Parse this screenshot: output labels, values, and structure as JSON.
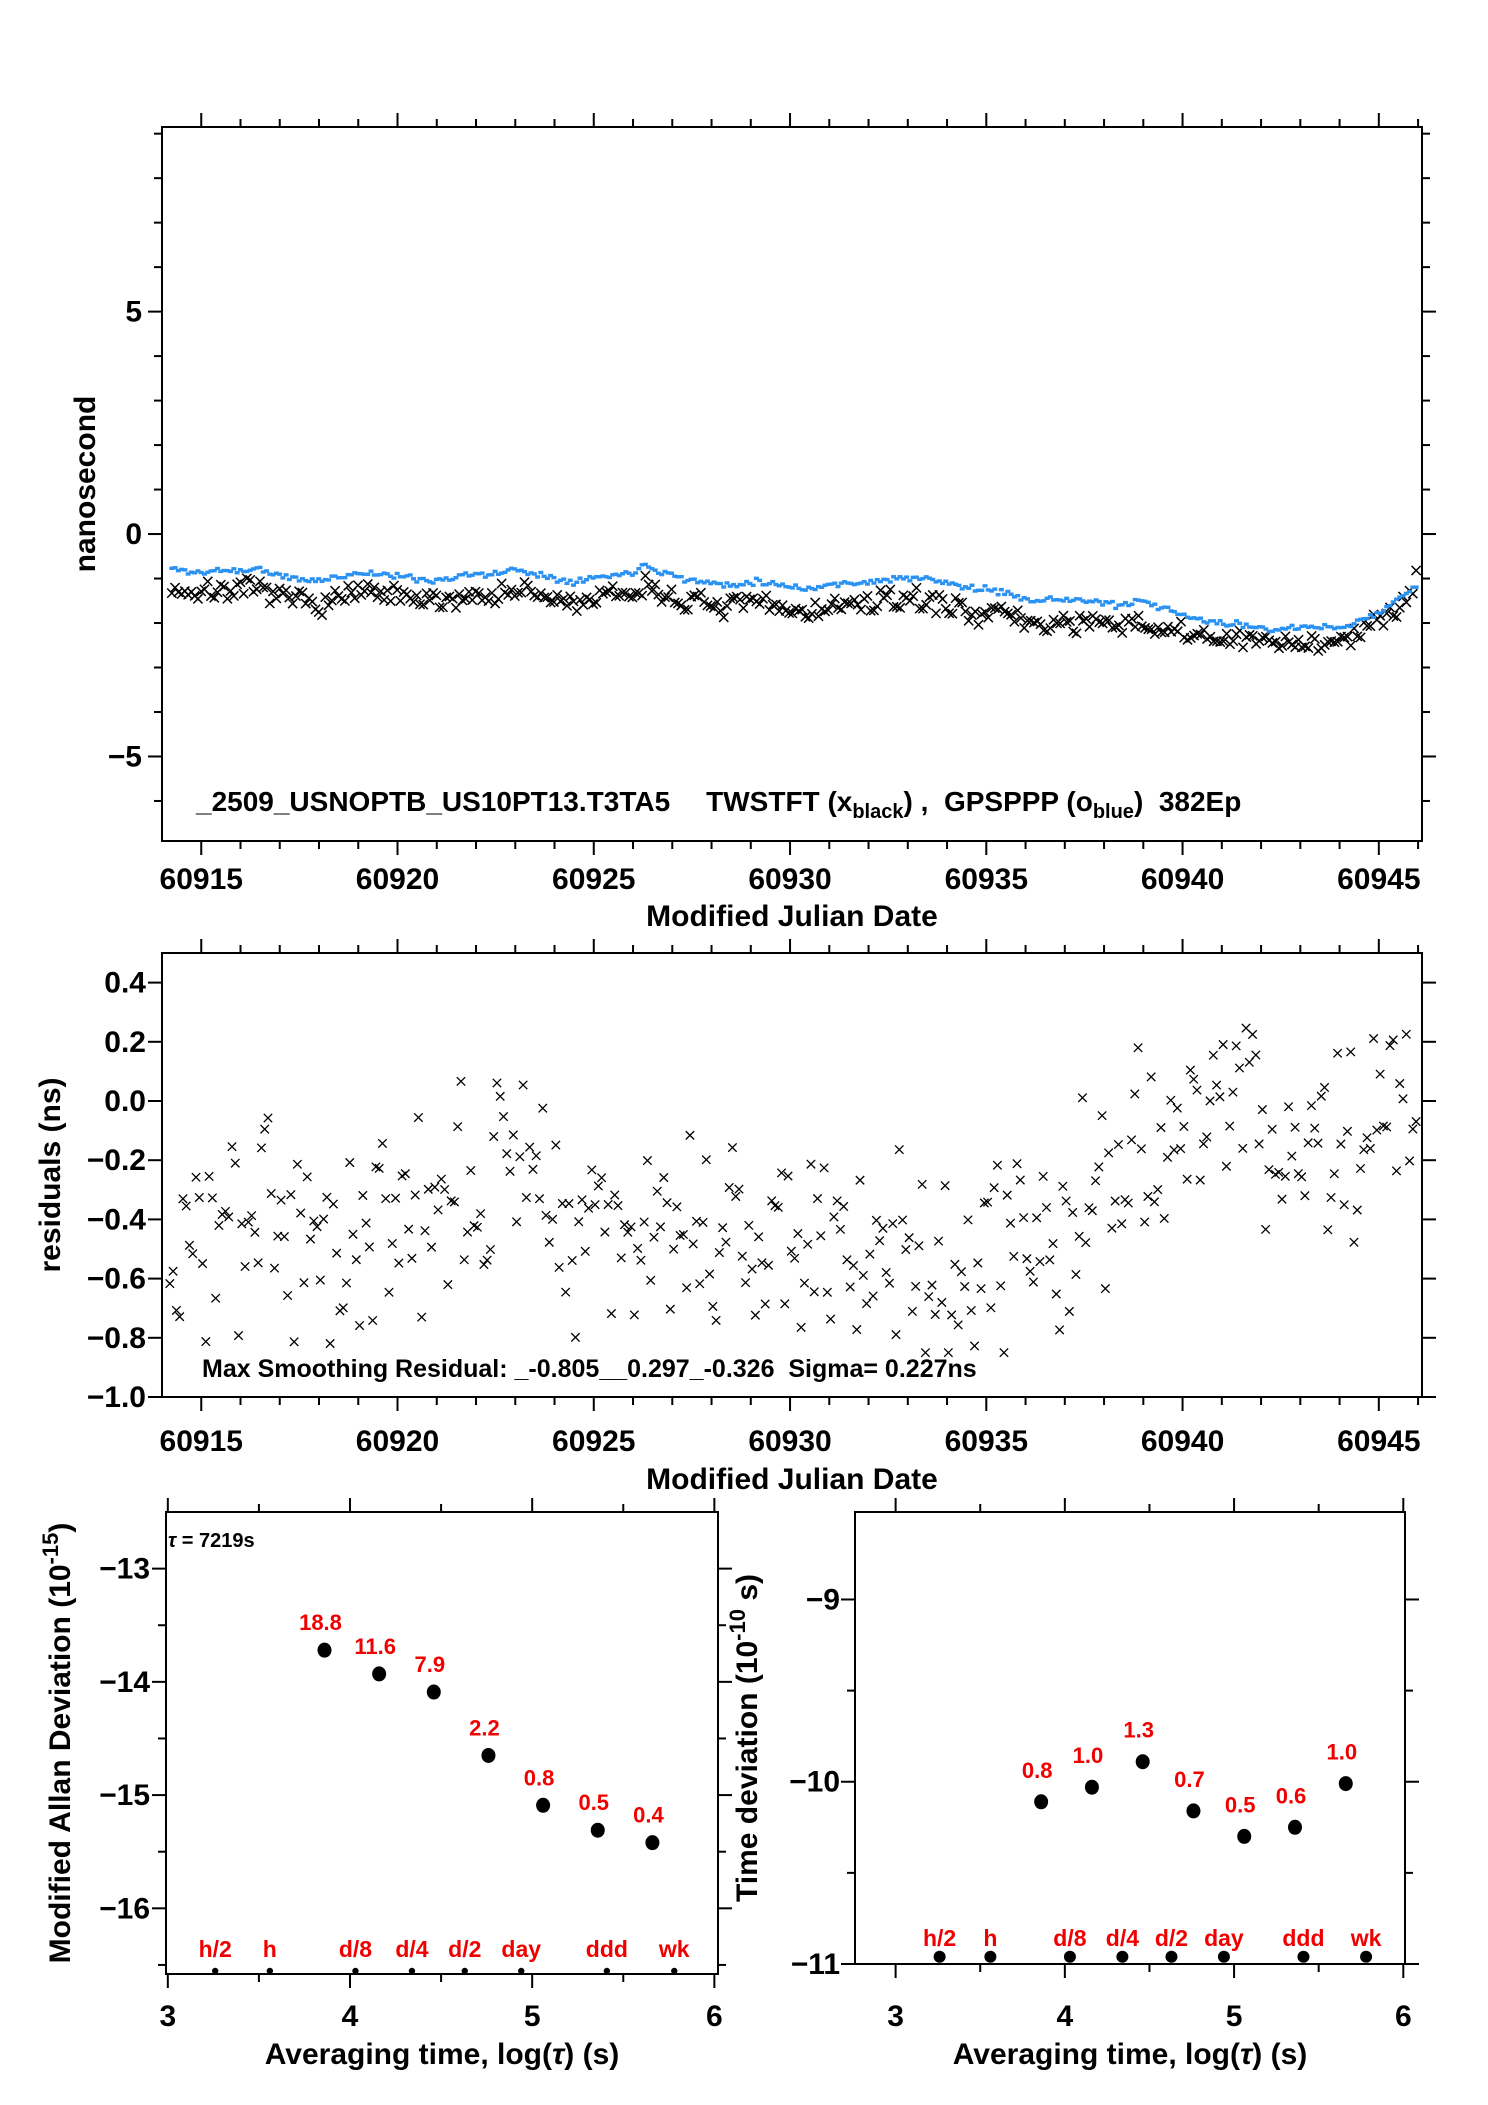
{
  "header": {
    "file_id": "_2509_USNOPTB_US10PT13.T3TA5",
    "legend_t1": "TWSTFT (x",
    "legend_sub1": "black",
    "legend_t2": ") ,  GPSPPP (o",
    "legend_sub2": "blue",
    "legend_t3": ")  382Ep"
  },
  "annotations": {
    "max_smoothing": "Max Smoothing Residual: _-0.805__0.297_-0.326  Sigma= 0.227ns",
    "tau_sym": "τ",
    "tau_rest": " = 7219s"
  },
  "colors": {
    "black": "#000000",
    "blue": "#2b92f2",
    "red": "#f00000"
  },
  "chart_data": [
    {
      "type": "scatter",
      "name": "time-transfer-comparison",
      "title": "_2509_USNOPTB_US10PT13.T3TA5 TWSTFT (x black), GPSPPP (o blue) 382Ep",
      "xlabel": [
        [
          "Modified Julian Date"
        ]
      ],
      "ylabel": [
        [
          "nanosecond"
        ]
      ],
      "xlim": [
        60914,
        60946.1
      ],
      "ylim": [
        -6.9,
        9.15
      ],
      "xticks": [
        60915,
        60920,
        60925,
        60930,
        60935,
        60940,
        60945
      ],
      "xtick_labels": [
        "60915",
        "60920",
        "60925",
        "60930",
        "60935",
        "60940",
        "60945"
      ],
      "xminor": 1,
      "yticks": [
        5,
        0,
        -5
      ],
      "ytick_labels": [
        "5",
        "0",
        "−5"
      ],
      "yminor": 1,
      "series": [
        {
          "name": "TWSTFT",
          "marker": "x",
          "color": "#000000",
          "n": 382,
          "seed": 7,
          "noise": 0.12,
          "trend": [
            [
              60914.25,
              -1.22
            ],
            [
              60915,
              -1.35
            ],
            [
              60915.5,
              -1.22
            ],
            [
              60916,
              -1.3
            ],
            [
              60916.5,
              -1.25
            ],
            [
              60917,
              -1.42
            ],
            [
              60917.5,
              -1.5
            ],
            [
              60918,
              -1.55
            ],
            [
              60918.5,
              -1.45
            ],
            [
              60919,
              -1.32
            ],
            [
              60919.5,
              -1.36
            ],
            [
              60920,
              -1.42
            ],
            [
              60920.5,
              -1.5
            ],
            [
              60921,
              -1.55
            ],
            [
              60921.4,
              -1.45
            ],
            [
              60921.8,
              -1.36
            ],
            [
              60922.2,
              -1.42
            ],
            [
              60922.6,
              -1.32
            ],
            [
              60923,
              -1.27
            ],
            [
              60923.5,
              -1.36
            ],
            [
              60924,
              -1.5
            ],
            [
              60924.5,
              -1.55
            ],
            [
              60925,
              -1.46
            ],
            [
              60925.5,
              -1.4
            ],
            [
              60926,
              -1.32
            ],
            [
              60926.3,
              -1.16
            ],
            [
              60926.7,
              -1.32
            ],
            [
              60927,
              -1.42
            ],
            [
              60927.5,
              -1.55
            ],
            [
              60928,
              -1.6
            ],
            [
              60928.5,
              -1.65
            ],
            [
              60929,
              -1.55
            ],
            [
              60929.5,
              -1.6
            ],
            [
              60930,
              -1.7
            ],
            [
              60930.5,
              -1.75
            ],
            [
              60931,
              -1.65
            ],
            [
              60931.5,
              -1.6
            ],
            [
              60932,
              -1.56
            ],
            [
              60932.5,
              -1.5
            ],
            [
              60933,
              -1.46
            ],
            [
              60933.5,
              -1.5
            ],
            [
              60934,
              -1.6
            ],
            [
              60934.5,
              -1.7
            ],
            [
              60935,
              -1.76
            ],
            [
              60935.5,
              -1.82
            ],
            [
              60936,
              -1.96
            ],
            [
              60936.5,
              -2.05
            ],
            [
              60937,
              -1.96
            ],
            [
              60937.5,
              -2.0
            ],
            [
              60938,
              -2.06
            ],
            [
              60938.5,
              -2.1
            ],
            [
              60939,
              -2.0
            ],
            [
              60939.5,
              -2.16
            ],
            [
              60940,
              -2.26
            ],
            [
              60940.5,
              -2.3
            ],
            [
              60941,
              -2.35
            ],
            [
              60941.5,
              -2.4
            ],
            [
              60942,
              -2.42
            ],
            [
              60942.5,
              -2.46
            ],
            [
              60943,
              -2.4
            ],
            [
              60943.5,
              -2.45
            ],
            [
              60944,
              -2.42
            ],
            [
              60944.4,
              -2.3
            ],
            [
              60944.8,
              -2.1
            ],
            [
              60945.2,
              -1.8
            ],
            [
              60945.6,
              -1.45
            ],
            [
              60945.95,
              -1.1
            ]
          ]
        },
        {
          "name": "GPSPPP",
          "marker": "square",
          "color": "#2b92f2",
          "n": 382,
          "seed": 11,
          "noise": 0.035,
          "trend": [
            [
              60914.25,
              -0.78
            ],
            [
              60915,
              -0.88
            ],
            [
              60915.5,
              -0.8
            ],
            [
              60916,
              -0.83
            ],
            [
              60916.5,
              -0.78
            ],
            [
              60917,
              -0.95
            ],
            [
              60917.5,
              -1.02
            ],
            [
              60918,
              -1.05
            ],
            [
              60918.5,
              -0.96
            ],
            [
              60919,
              -0.87
            ],
            [
              60919.5,
              -0.89
            ],
            [
              60920,
              -0.95
            ],
            [
              60920.5,
              -1.0
            ],
            [
              60921,
              -1.05
            ],
            [
              60921.4,
              -0.97
            ],
            [
              60921.8,
              -0.9
            ],
            [
              60922.2,
              -0.94
            ],
            [
              60922.6,
              -0.86
            ],
            [
              60923,
              -0.8
            ],
            [
              60923.5,
              -0.88
            ],
            [
              60924,
              -1.0
            ],
            [
              60924.5,
              -1.05
            ],
            [
              60925,
              -0.98
            ],
            [
              60925.5,
              -0.93
            ],
            [
              60926,
              -0.85
            ],
            [
              60926.3,
              -0.68
            ],
            [
              60926.7,
              -0.83
            ],
            [
              60927,
              -0.92
            ],
            [
              60927.5,
              -1.05
            ],
            [
              60928,
              -1.1
            ],
            [
              60928.5,
              -1.15
            ],
            [
              60929,
              -1.06
            ],
            [
              60929.5,
              -1.1
            ],
            [
              60930,
              -1.18
            ],
            [
              60930.5,
              -1.22
            ],
            [
              60931,
              -1.15
            ],
            [
              60931.5,
              -1.1
            ],
            [
              60932,
              -1.07
            ],
            [
              60932.5,
              -1.03
            ],
            [
              60933,
              -0.98
            ],
            [
              60933.5,
              -1.02
            ],
            [
              60934,
              -1.1
            ],
            [
              60934.5,
              -1.2
            ],
            [
              60935,
              -1.26
            ],
            [
              60935.5,
              -1.32
            ],
            [
              60936,
              -1.44
            ],
            [
              60936.5,
              -1.5
            ],
            [
              60937,
              -1.45
            ],
            [
              60937.5,
              -1.5
            ],
            [
              60938,
              -1.56
            ],
            [
              60938.5,
              -1.6
            ],
            [
              60939,
              -1.52
            ],
            [
              60939.5,
              -1.68
            ],
            [
              60940,
              -1.82
            ],
            [
              60940.5,
              -1.95
            ],
            [
              60941,
              -2.0
            ],
            [
              60941.5,
              -2.05
            ],
            [
              60942,
              -2.1
            ],
            [
              60942.5,
              -2.14
            ],
            [
              60943,
              -2.1
            ],
            [
              60943.5,
              -2.12
            ],
            [
              60944,
              -2.08
            ],
            [
              60944.4,
              -2.0
            ],
            [
              60944.8,
              -1.85
            ],
            [
              60945.2,
              -1.65
            ],
            [
              60945.6,
              -1.4
            ],
            [
              60945.95,
              -1.15
            ]
          ]
        }
      ]
    },
    {
      "type": "scatter",
      "name": "smoothing-residuals",
      "title": "Smoothing residuals",
      "xlabel": [
        [
          "Modified Julian Date"
        ]
      ],
      "ylabel": [
        [
          "residuals (ns)"
        ]
      ],
      "xlim": [
        60914,
        60946.1
      ],
      "ylim": [
        -1.0,
        0.5
      ],
      "xticks": [
        60915,
        60920,
        60925,
        60930,
        60935,
        60940,
        60945
      ],
      "xtick_labels": [
        "60915",
        "60920",
        "60925",
        "60930",
        "60935",
        "60940",
        "60945"
      ],
      "xminor": 1,
      "yticks": [
        0.4,
        0.2,
        0.0,
        -0.2,
        -0.4,
        -0.6,
        -0.8,
        -1.0
      ],
      "ytick_labels": [
        "0.4",
        "0.2",
        "0.0",
        "−0.2",
        "−0.4",
        "−0.6",
        "−0.8",
        "−1.0"
      ],
      "yminor": 0.2,
      "stats": {
        "max_residuals": [
          -0.805,
          0.297,
          -0.326
        ],
        "sigma_ns": 0.227
      },
      "series": [
        {
          "name": "residuals",
          "marker": "x",
          "color": "#000000",
          "n": 382,
          "seed": 3,
          "noise": 0.17,
          "clip": [
            -0.85,
            0.3
          ],
          "trend": [
            [
              60914.2,
              -0.52
            ],
            [
              60915,
              -0.46
            ],
            [
              60915.8,
              -0.52
            ],
            [
              60916.5,
              -0.46
            ],
            [
              60917.2,
              -0.42
            ],
            [
              60918,
              -0.42
            ],
            [
              60918.8,
              -0.46
            ],
            [
              60919.5,
              -0.42
            ],
            [
              60920.2,
              -0.46
            ],
            [
              60921,
              -0.44
            ],
            [
              60921.8,
              -0.36
            ],
            [
              60922.5,
              -0.25
            ],
            [
              60923.2,
              -0.17
            ],
            [
              60923.8,
              -0.2
            ],
            [
              60924.3,
              -0.3
            ],
            [
              60925,
              -0.4
            ],
            [
              60925.8,
              -0.44
            ],
            [
              60926.5,
              -0.42
            ],
            [
              60927.2,
              -0.46
            ],
            [
              60928,
              -0.44
            ],
            [
              60929,
              -0.5
            ],
            [
              60930,
              -0.52
            ],
            [
              60931,
              -0.46
            ],
            [
              60932,
              -0.5
            ],
            [
              60933,
              -0.55
            ],
            [
              60934,
              -0.62
            ],
            [
              60934.6,
              -0.66
            ],
            [
              60935.2,
              -0.55
            ],
            [
              60936,
              -0.42
            ],
            [
              60937,
              -0.32
            ],
            [
              60938,
              -0.26
            ],
            [
              60939,
              -0.22
            ],
            [
              60940,
              -0.12
            ],
            [
              60940.8,
              -0.1
            ],
            [
              60941.5,
              -0.02
            ],
            [
              60942.2,
              -0.08
            ],
            [
              60943,
              -0.16
            ],
            [
              60943.8,
              -0.12
            ],
            [
              60944.5,
              -0.08
            ],
            [
              60945.2,
              -0.1
            ],
            [
              60945.95,
              -0.02
            ]
          ]
        }
      ]
    },
    {
      "type": "scatter",
      "name": "modified-allan-deviation",
      "title": "Modified Allan Deviation",
      "tau_note": "τ = 7219s",
      "xlabel": [
        [
          "Averaging time, log("
        ],
        [
          "τ",
          "i"
        ],
        [
          ") (s)"
        ]
      ],
      "ylabel": [
        [
          "Modified Allan Deviation (10"
        ],
        [
          "-15",
          "sup"
        ],
        [
          ")"
        ]
      ],
      "xlim": [
        2.99,
        6.02
      ],
      "ylim": [
        -16.58,
        -12.5
      ],
      "xticks": [
        3,
        4,
        5,
        6
      ],
      "xtick_labels": [
        "3",
        "4",
        "5",
        "6"
      ],
      "xminor": 0.5,
      "yticks": [
        -13,
        -14,
        -15,
        -16
      ],
      "ytick_labels": [
        "−13",
        "−14",
        "−15",
        "−16"
      ],
      "yminor": 0.5,
      "points": {
        "x": [
          3.86,
          4.16,
          4.46,
          4.76,
          5.06,
          5.36,
          5.66
        ],
        "y": [
          -13.72,
          -13.93,
          -14.09,
          -14.65,
          -15.09,
          -15.31,
          -15.42
        ],
        "labels": [
          "18.8",
          "11.6",
          "7.9",
          "2.2",
          "0.8",
          "0.5",
          "0.4"
        ]
      },
      "cats": {
        "labels": [
          "h/2",
          "h",
          "d/8",
          "d/4",
          "d/2",
          "day",
          "ddd",
          "wk"
        ],
        "x": [
          3.26,
          3.56,
          4.03,
          4.34,
          4.63,
          4.94,
          5.41,
          5.78
        ]
      }
    },
    {
      "type": "scatter",
      "name": "time-deviation",
      "title": "Time deviation",
      "xlabel": [
        [
          "Averaging time, log("
        ],
        [
          "τ",
          "i"
        ],
        [
          ") (s)"
        ]
      ],
      "ylabel": [
        [
          "Time deviation (10"
        ],
        [
          "-10",
          "sup"
        ],
        [
          " s)"
        ]
      ],
      "xlim": [
        2.76,
        6.01
      ],
      "ylim": [
        -11,
        -8.52
      ],
      "xticks": [
        3,
        4,
        5,
        6
      ],
      "xtick_labels": [
        "3",
        "4",
        "5",
        "6"
      ],
      "xminor": 0.5,
      "yticks": [
        -9,
        -10,
        -11
      ],
      "ytick_labels": [
        "−9",
        "−10",
        "−11"
      ],
      "yminor": 0.5,
      "points": {
        "x": [
          3.86,
          4.16,
          4.46,
          4.76,
          5.06,
          5.36,
          5.66
        ],
        "y": [
          -10.11,
          -10.03,
          -9.89,
          -10.16,
          -10.3,
          -10.25,
          -10.01
        ],
        "labels": [
          "0.8",
          "1.0",
          "1.3",
          "0.7",
          "0.5",
          "0.6",
          "1.0"
        ]
      },
      "cats": {
        "labels": [
          "h/2",
          "h",
          "d/8",
          "d/4",
          "d/2",
          "day",
          "ddd",
          "wk"
        ],
        "x": [
          3.26,
          3.56,
          4.03,
          4.34,
          4.63,
          4.94,
          5.41,
          5.78
        ],
        "dot_y": -10.96
      }
    }
  ]
}
